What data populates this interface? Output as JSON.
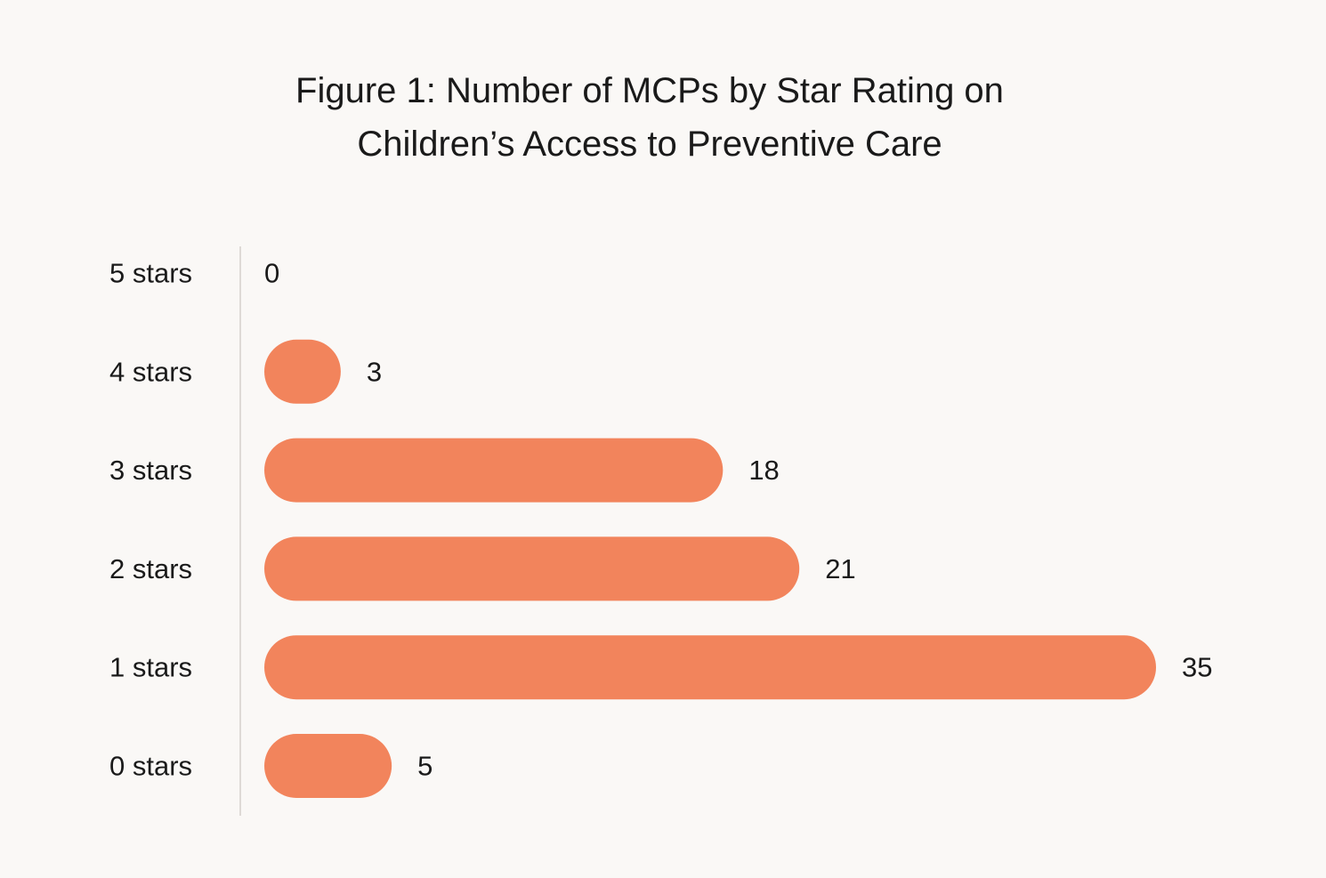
{
  "chart_data": {
    "type": "bar",
    "orientation": "horizontal",
    "title_lines": [
      "Figure 1: Number of MCPs by Star Rating on",
      "Children’s Access to Preventive Care"
    ],
    "categories": [
      "5 stars",
      "4 stars",
      "3 stars",
      "2 stars",
      "1 stars",
      "0 stars"
    ],
    "values": [
      0,
      3,
      18,
      21,
      35,
      5
    ],
    "xlim": [
      0,
      35
    ],
    "bar_color": "#f2845c",
    "grid": false,
    "legend": "none",
    "data_labels": true
  }
}
